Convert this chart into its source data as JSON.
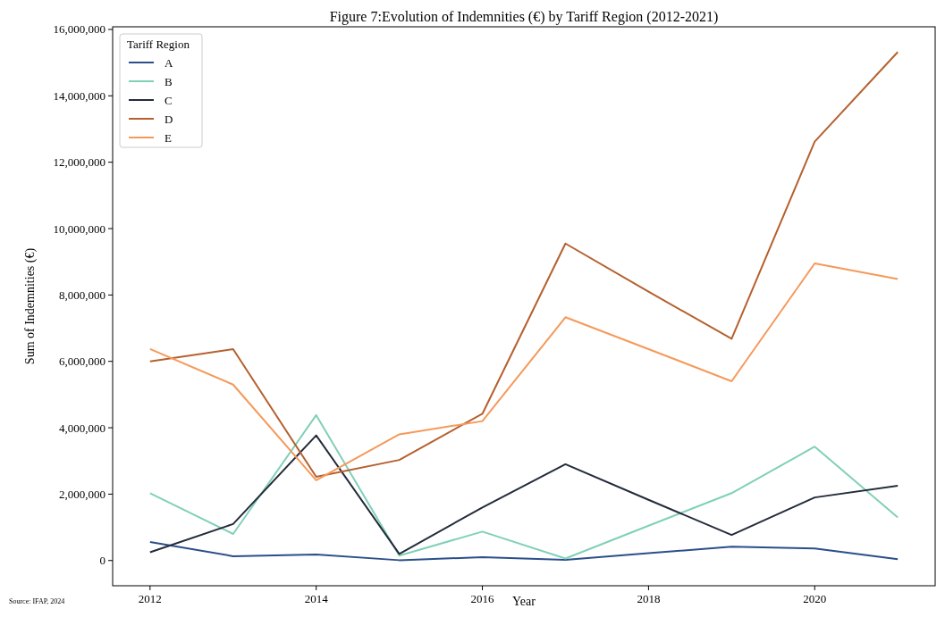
{
  "chart_data": {
    "type": "line",
    "title": "Figure 7:Evolution of Indemnities (€) by Tariff Region (2012-2021)",
    "xlabel": "Year",
    "ylabel": "Sum of Indemnities (€)",
    "legend_title": "Tariff Region",
    "legend": "top left",
    "grid": false,
    "annotations": [
      "Source: IFAP, 2024"
    ],
    "x": [
      2012,
      2013,
      2014,
      2015,
      2016,
      2017,
      2018,
      2019,
      2020,
      2021
    ],
    "xlim": [
      2011.55,
      2021.45
    ],
    "xticks": [
      2012,
      2014,
      2016,
      2018,
      2020
    ],
    "ylim": [
      -760000,
      16080000
    ],
    "yticks": [
      {
        "value": 0,
        "label": "0"
      },
      {
        "value": 2000000,
        "label": "2,000,000"
      },
      {
        "value": 4000000,
        "label": "4,000,000"
      },
      {
        "value": 6000000,
        "label": "6,000,000"
      },
      {
        "value": 8000000,
        "label": "8,000,000"
      },
      {
        "value": 10000000,
        "label": "10,000,000"
      },
      {
        "value": 12000000,
        "label": "12,000,000"
      },
      {
        "value": 14000000,
        "label": "14,000,000"
      },
      {
        "value": 16000000,
        "label": "16,000,000"
      }
    ],
    "series": [
      {
        "name": "A",
        "color": "#2b4f8a",
        "values": [
          560000,
          130000,
          180000,
          10000,
          100000,
          20000,
          220000,
          420000,
          360000,
          40000
        ]
      },
      {
        "name": "B",
        "color": "#80d0b8",
        "values": [
          2030000,
          800000,
          4380000,
          150000,
          870000,
          60000,
          1050000,
          2030000,
          3430000,
          1300000
        ]
      },
      {
        "name": "C",
        "color": "#232b3a",
        "values": [
          250000,
          1100000,
          3770000,
          200000,
          1600000,
          2900000,
          1830000,
          770000,
          1900000,
          2250000
        ]
      },
      {
        "name": "D",
        "color": "#b5602e",
        "values": [
          6000000,
          6370000,
          2520000,
          3030000,
          4420000,
          9550000,
          8100000,
          6680000,
          12620000,
          15320000
        ]
      },
      {
        "name": "E",
        "color": "#f5995a",
        "values": [
          6370000,
          5300000,
          2420000,
          3800000,
          4200000,
          7330000,
          6370000,
          5400000,
          8950000,
          8480000
        ]
      }
    ]
  }
}
